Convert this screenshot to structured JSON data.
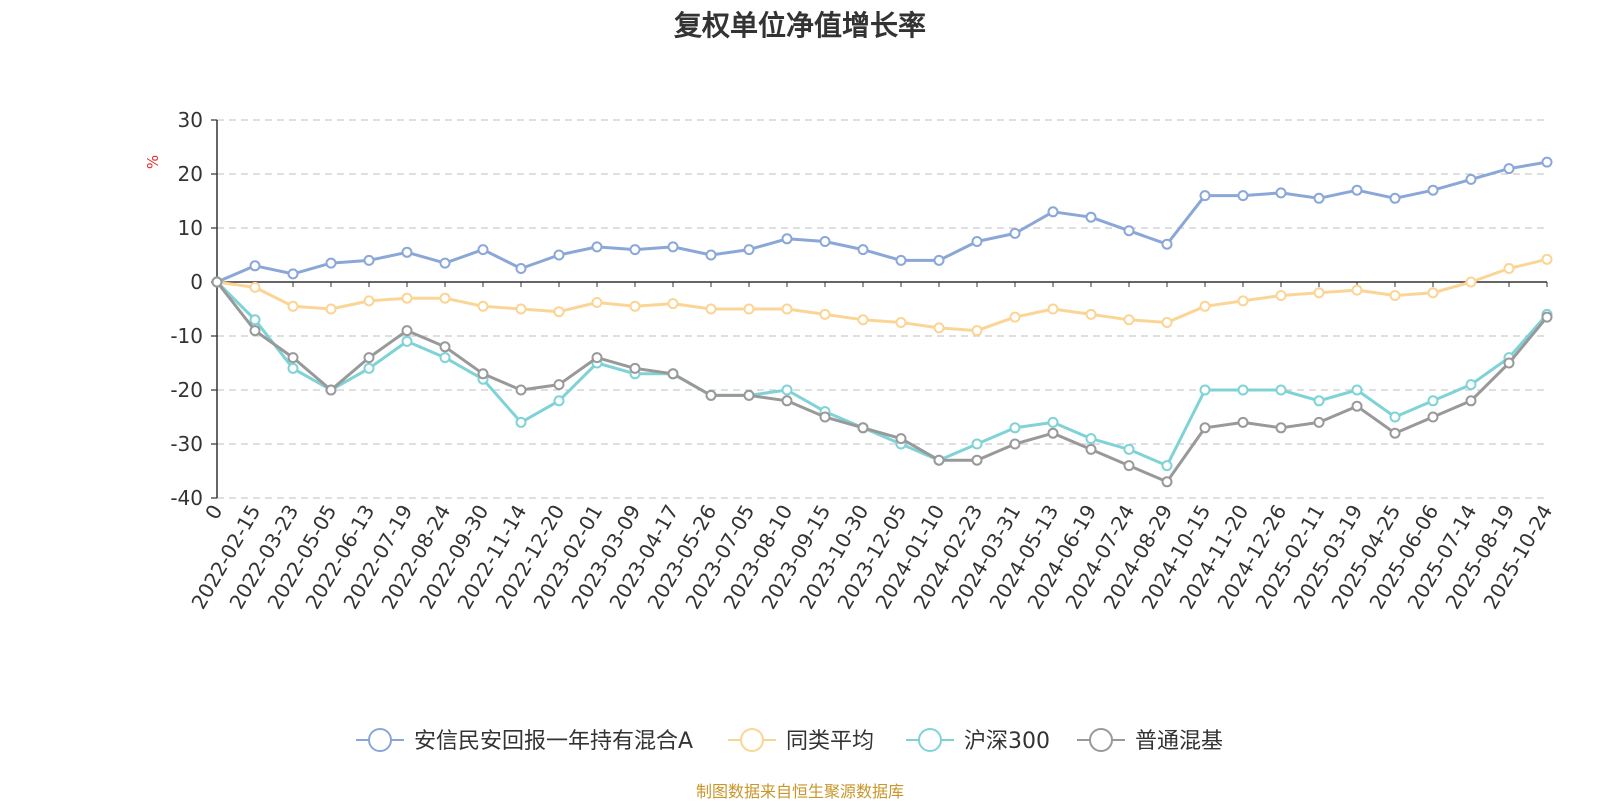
{
  "source_note": "制图数据来自恒生聚源数据库",
  "chart_data": {
    "type": "line",
    "title": "复权单位净值增长率",
    "ylabel": "%",
    "xlabel": "",
    "ylim": [
      -40,
      30
    ],
    "yticks": [
      30,
      20,
      10,
      0,
      -10,
      -20,
      -30,
      -40
    ],
    "grid": true,
    "legend_position": "bottom",
    "categories": [
      "0",
      "2022-02-15",
      "2022-03-23",
      "2022-05-05",
      "2022-06-13",
      "2022-07-19",
      "2022-08-24",
      "2022-09-30",
      "2022-11-14",
      "2022-12-20",
      "2023-02-01",
      "2023-03-09",
      "2023-04-17",
      "2023-05-26",
      "2023-07-05",
      "2023-08-10",
      "2023-09-15",
      "2023-10-30",
      "2023-12-05",
      "2024-01-10",
      "2024-02-23",
      "2024-03-31",
      "2024-05-13",
      "2024-06-19",
      "2024-07-24",
      "2024-08-29",
      "2024-10-15",
      "2024-11-20",
      "2024-12-26",
      "2025-02-11",
      "2025-03-19",
      "2025-04-25",
      "2025-06-06",
      "2025-07-14",
      "2025-08-19",
      "2025-10-24"
    ],
    "series": [
      {
        "name": "安信民安回报一年持有混合A",
        "color": "#8aa7d8",
        "values": [
          0,
          3,
          1.5,
          3.5,
          4,
          5.5,
          3.5,
          6,
          2.5,
          5,
          6.5,
          6,
          6.5,
          5,
          6,
          8,
          7.5,
          6,
          4,
          4,
          7.5,
          9,
          13,
          12,
          9.5,
          7,
          16,
          16,
          16.5,
          15.5,
          17,
          15.5,
          17,
          19,
          21,
          22.2
        ]
      },
      {
        "name": "同类平均",
        "color": "#fad595",
        "values": [
          0,
          -1,
          -4.5,
          -5,
          -3.5,
          -3,
          -3,
          -4.5,
          -5,
          -5.5,
          -3.8,
          -4.5,
          -4,
          -5,
          -5,
          -5,
          -6,
          -7,
          -7.5,
          -8.5,
          -9,
          -6.5,
          -5,
          -6,
          -7,
          -7.5,
          -4.5,
          -3.5,
          -2.5,
          -2,
          -1.5,
          -2.5,
          -2,
          0,
          2.5,
          4.2
        ]
      },
      {
        "name": "沪深300",
        "color": "#7fd3d7",
        "values": [
          0,
          -7,
          -16,
          -20,
          -16,
          -11,
          -14,
          -18,
          -26,
          -22,
          -15,
          -17,
          -17,
          -21,
          -21,
          -20,
          -24,
          -27,
          -30,
          -33,
          -30,
          -27,
          -26,
          -29,
          -31,
          -34,
          -20,
          -20,
          -20,
          -22,
          -20,
          -25,
          -22,
          -19,
          -14,
          -6
        ]
      },
      {
        "name": "普通混基",
        "color": "#999999",
        "values": [
          0,
          -9,
          -14,
          -20,
          -14,
          -9,
          -12,
          -17,
          -20,
          -19,
          -14,
          -16,
          -17,
          -21,
          -21,
          -22,
          -25,
          -27,
          -29,
          -33,
          -33,
          -30,
          -28,
          -31,
          -34,
          -37,
          -27,
          -26,
          -27,
          -26,
          -23,
          -28,
          -25,
          -22,
          -15,
          -6.5
        ]
      }
    ]
  }
}
